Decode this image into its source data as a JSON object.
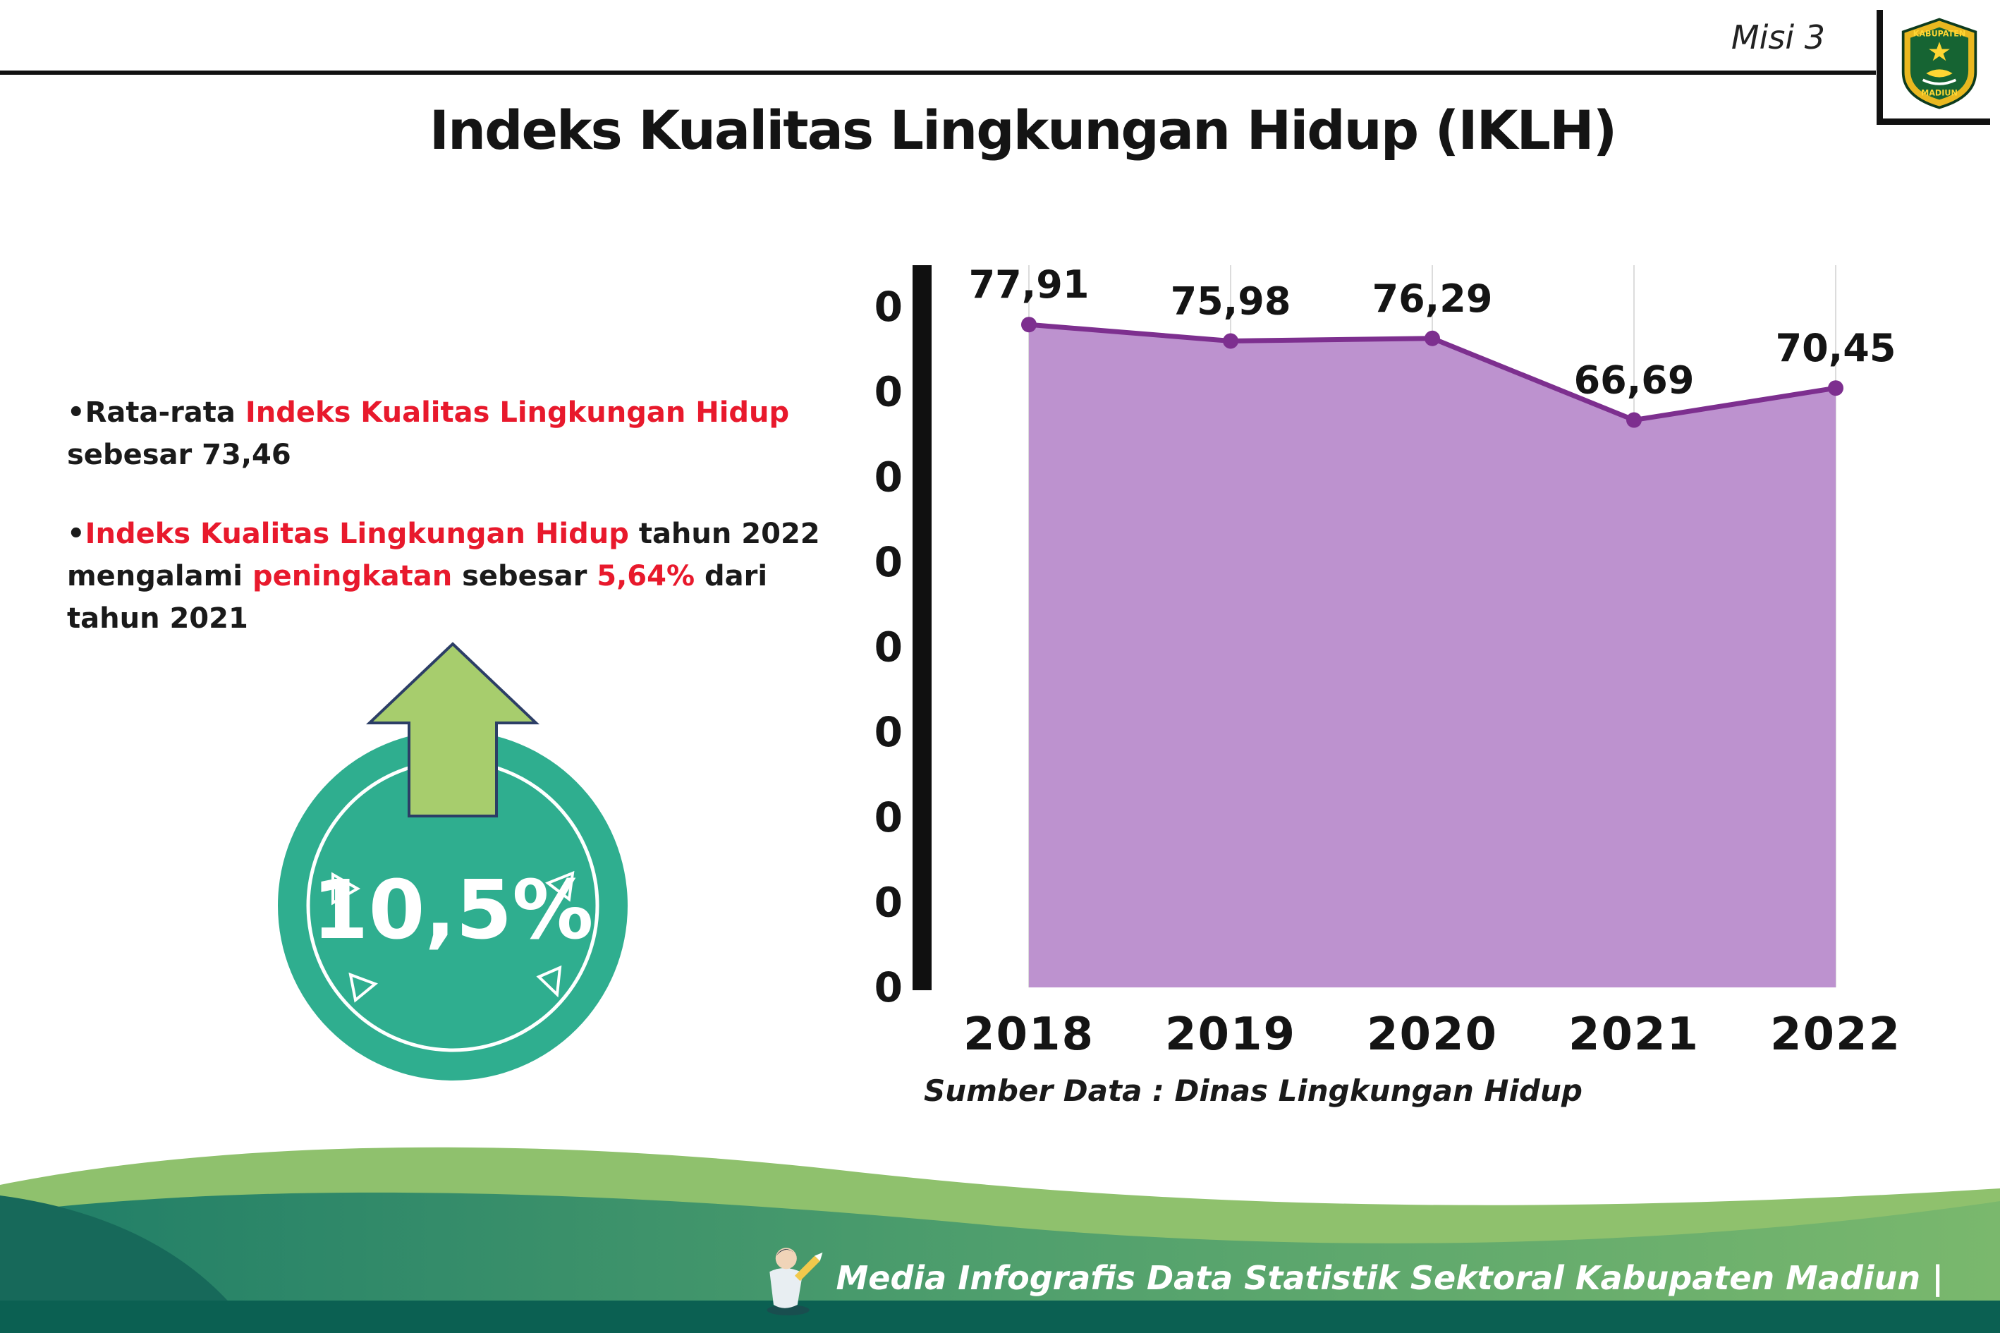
{
  "header": {
    "misi": "Misi 3",
    "title": "Indeks Kualitas Lingkungan Hidup (IKLH)",
    "logo": {
      "top": "KABUPATEN",
      "bottom": "MADIUN"
    }
  },
  "bullets": {
    "b1_seg1": "•Rata-rata ",
    "b1_seg2": "Indeks Kualitas Lingkungan Hidup",
    "b1_seg3": " sebesar 73,46",
    "b2_seg1": "•",
    "b2_seg2": "Indeks Kualitas Lingkungan Hidup",
    "b2_seg3": " tahun 2022 mengalami ",
    "b2_seg4": "peningkatan",
    "b2_seg5": " sebesar ",
    "b2_seg6": "5,64%",
    "b2_seg7": " dari tahun 2021"
  },
  "badge": {
    "value": "10,5%"
  },
  "chart_data": {
    "type": "area",
    "categories": [
      "2018",
      "2019",
      "2020",
      "2021",
      "2022"
    ],
    "values": [
      77.91,
      75.98,
      76.29,
      66.69,
      70.45
    ],
    "point_labels": [
      "77,91",
      "75,98",
      "76,29",
      "66,69",
      "70,45"
    ],
    "ylim": [
      0,
      80
    ],
    "ytick_step": 10,
    "grid": "vertical",
    "line_color": "#7d2f8f",
    "fill_color": "#bd92cf",
    "source": "Sumber Data : Dinas Lingkungan Hidup"
  },
  "footer": {
    "credit": "Media Infografis Data Statistik Sektoral Kabupaten Madiun |"
  },
  "palette": {
    "accent_red": "#e8192c",
    "badge_teal": "#2fae8f",
    "arrow_green": "#a7cd6d",
    "footer_teal": "#1f7d67",
    "footer_green": "#7ab86d",
    "footer_dark": "#0b6052"
  }
}
